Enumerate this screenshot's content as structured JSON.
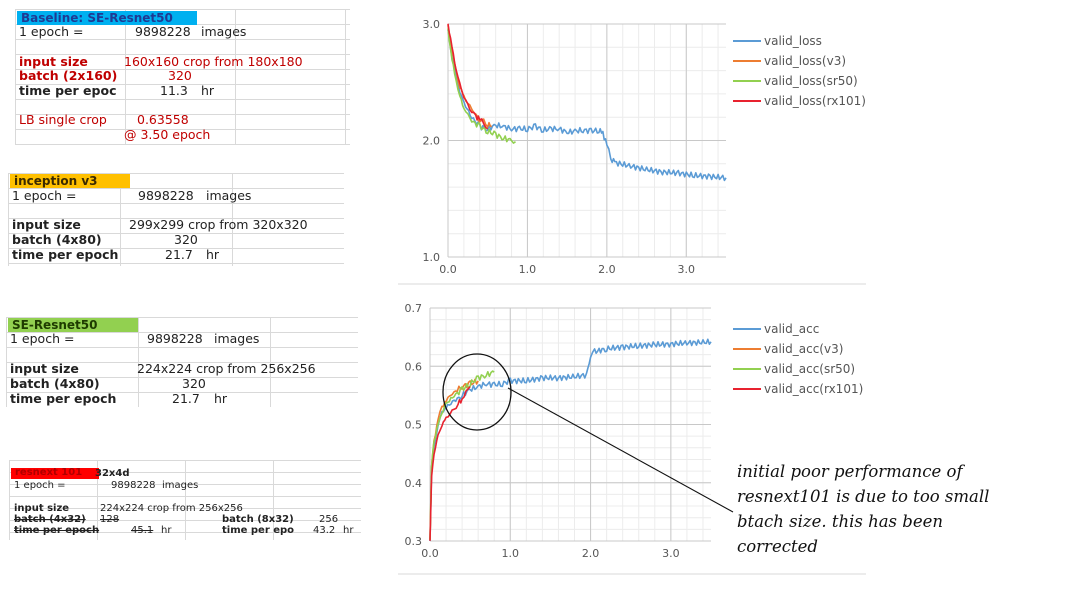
{
  "tables": {
    "baseline": {
      "header": "Baseline: SE-Resnet50",
      "header_color": "#00b0f0",
      "epoch_label": "1 epoch =",
      "epoch_images": "9898228",
      "images_unit": "images",
      "input_size_label": "input size",
      "input_size_value": "160x160 crop from 180x180",
      "batch_label": "batch (2x160)",
      "batch_value": "320",
      "time_label": "time per epoc",
      "time_value": "11.3",
      "time_unit": "hr",
      "lb_label": "LB single crop",
      "lb_value": "0.63558",
      "lb_epoch": "@ 3.50 epoch",
      "text_color": "#c00000"
    },
    "inception": {
      "header": "inception v3",
      "header_color": "#ffc000",
      "epoch_label": "1 epoch =",
      "epoch_images": "9898228",
      "images_unit": "images",
      "input_size_label": "input size",
      "input_size_value": "299x299 crop from 320x320",
      "batch_label": "batch (4x80)",
      "batch_value": "320",
      "time_label": "time per epoch",
      "time_value": "21.7",
      "time_unit": "hr"
    },
    "seresnet": {
      "header": "SE-Resnet50",
      "header_color": "#92d050",
      "epoch_label": "1 epoch =",
      "epoch_images": "9898228",
      "images_unit": "images",
      "input_size_label": "input size",
      "input_size_value": "224x224 crop from 256x256",
      "batch_label": "batch (4x80)",
      "batch_value": "320",
      "time_label": "time per epoch",
      "time_value": "21.7",
      "time_unit": "hr"
    },
    "resnext": {
      "header": "resnext 101",
      "header_suffix": "32x4d",
      "header_color": "#ff0000",
      "epoch_label": "1 epoch =",
      "epoch_images": "9898228",
      "images_unit": "images",
      "input_size_label": "input size",
      "input_size_value": "224x224 crop from 256x256",
      "batch_label_old": "batch (4x32)",
      "batch_value_old": "128",
      "time_label_old": "time per epoch",
      "time_value_old": "45.1",
      "time_unit": "hr",
      "batch_label_new": "batch (8x32)",
      "batch_value_new": "256",
      "time_label_new": "time per epo",
      "time_value_new": "43.2",
      "time_unit_new": "hr"
    }
  },
  "note": {
    "lines": [
      "initial poor performance of",
      "resnext101 is due to too small",
      "btach size. this has been",
      "corrected"
    ]
  },
  "chart_data": [
    {
      "type": "line",
      "title": "",
      "xlabel": "",
      "ylabel": "",
      "xlim": [
        0,
        3.5
      ],
      "ylim": [
        1.0,
        3.0
      ],
      "xticks": [
        "0.0",
        "1.0",
        "2.0",
        "3.0"
      ],
      "yticks": [
        "1.0",
        "2.0",
        "3.0"
      ],
      "grid": true,
      "legend_position": "right",
      "series": [
        {
          "name": "valid_loss",
          "color": "#5b9bd5",
          "x": [
            0.0,
            0.05,
            0.1,
            0.15,
            0.2,
            0.3,
            0.4,
            0.5,
            0.6,
            0.7,
            0.8,
            0.9,
            1.0,
            1.1,
            1.2,
            1.3,
            1.4,
            1.5,
            1.6,
            1.7,
            1.8,
            1.9,
            1.95,
            2.0,
            2.05,
            2.1,
            2.3,
            2.5,
            2.7,
            2.9,
            3.1,
            3.3,
            3.5
          ],
          "y": [
            2.95,
            2.72,
            2.55,
            2.42,
            2.32,
            2.2,
            2.12,
            2.1,
            2.13,
            2.12,
            2.1,
            2.1,
            2.1,
            2.12,
            2.09,
            2.1,
            2.1,
            2.07,
            2.08,
            2.09,
            2.08,
            2.09,
            2.06,
            1.97,
            1.84,
            1.81,
            1.78,
            1.75,
            1.73,
            1.72,
            1.7,
            1.69,
            1.68
          ]
        },
        {
          "name": "valid_loss(v3)",
          "color": "#ed7d31",
          "x": [
            0.0,
            0.05,
            0.1,
            0.15,
            0.2,
            0.25,
            0.3,
            0.35,
            0.4,
            0.45,
            0.5,
            0.55
          ],
          "y": [
            2.98,
            2.78,
            2.6,
            2.46,
            2.38,
            2.32,
            2.27,
            2.22,
            2.18,
            2.16,
            2.14,
            2.12
          ]
        },
        {
          "name": "valid_loss(sr50)",
          "color": "#92d050",
          "x": [
            0.0,
            0.05,
            0.1,
            0.15,
            0.2,
            0.25,
            0.3,
            0.4,
            0.5,
            0.6,
            0.7,
            0.8,
            0.85
          ],
          "y": [
            2.95,
            2.7,
            2.52,
            2.38,
            2.28,
            2.22,
            2.17,
            2.12,
            2.08,
            2.05,
            2.02,
            2.0,
            1.99
          ]
        },
        {
          "name": "valid_loss(rx101)",
          "color": "#e8222f",
          "x": [
            0.0,
            0.05,
            0.1,
            0.15,
            0.2,
            0.25,
            0.3,
            0.35,
            0.4,
            0.45,
            0.5
          ],
          "y": [
            3.0,
            2.8,
            2.62,
            2.48,
            2.38,
            2.3,
            2.25,
            2.21,
            2.18,
            2.15,
            2.1
          ]
        }
      ]
    },
    {
      "type": "line",
      "title": "",
      "xlabel": "",
      "ylabel": "",
      "xlim": [
        0,
        3.5
      ],
      "ylim": [
        0.3,
        0.7
      ],
      "xticks": [
        "0.0",
        "1.0",
        "2.0",
        "3.0"
      ],
      "yticks": [
        "0.3",
        "0.4",
        "0.5",
        "0.6",
        "0.7"
      ],
      "grid": true,
      "legend_position": "right",
      "series": [
        {
          "name": "valid_acc",
          "color": "#5b9bd5",
          "x": [
            0.0,
            0.02,
            0.05,
            0.1,
            0.15,
            0.2,
            0.3,
            0.4,
            0.5,
            0.6,
            0.7,
            0.8,
            0.9,
            1.0,
            1.2,
            1.4,
            1.6,
            1.8,
            1.95,
            2.0,
            2.05,
            2.2,
            2.4,
            2.6,
            2.8,
            3.0,
            3.2,
            3.4,
            3.5
          ],
          "y": [
            0.3,
            0.42,
            0.46,
            0.5,
            0.52,
            0.53,
            0.54,
            0.55,
            0.56,
            0.565,
            0.57,
            0.568,
            0.57,
            0.575,
            0.575,
            0.58,
            0.58,
            0.582,
            0.585,
            0.62,
            0.625,
            0.63,
            0.633,
            0.635,
            0.637,
            0.638,
            0.64,
            0.641,
            0.642
          ]
        },
        {
          "name": "valid_acc(v3)",
          "color": "#ed7d31",
          "x": [
            0.0,
            0.02,
            0.05,
            0.1,
            0.15,
            0.2,
            0.25,
            0.3,
            0.4,
            0.5,
            0.6
          ],
          "y": [
            0.3,
            0.43,
            0.47,
            0.51,
            0.53,
            0.54,
            0.55,
            0.555,
            0.565,
            0.57,
            0.575
          ]
        },
        {
          "name": "valid_acc(sr50)",
          "color": "#92d050",
          "x": [
            0.0,
            0.02,
            0.05,
            0.1,
            0.15,
            0.2,
            0.3,
            0.4,
            0.5,
            0.6,
            0.7,
            0.8
          ],
          "y": [
            0.3,
            0.43,
            0.47,
            0.5,
            0.52,
            0.535,
            0.55,
            0.56,
            0.57,
            0.58,
            0.585,
            0.59
          ]
        },
        {
          "name": "valid_acc(rx101)",
          "color": "#e8222f",
          "x": [
            0.0,
            0.02,
            0.05,
            0.1,
            0.15,
            0.2,
            0.25,
            0.3,
            0.35,
            0.4,
            0.45,
            0.5
          ],
          "y": [
            0.3,
            0.41,
            0.45,
            0.48,
            0.5,
            0.51,
            0.52,
            0.525,
            0.535,
            0.545,
            0.555,
            0.565
          ]
        }
      ]
    }
  ]
}
